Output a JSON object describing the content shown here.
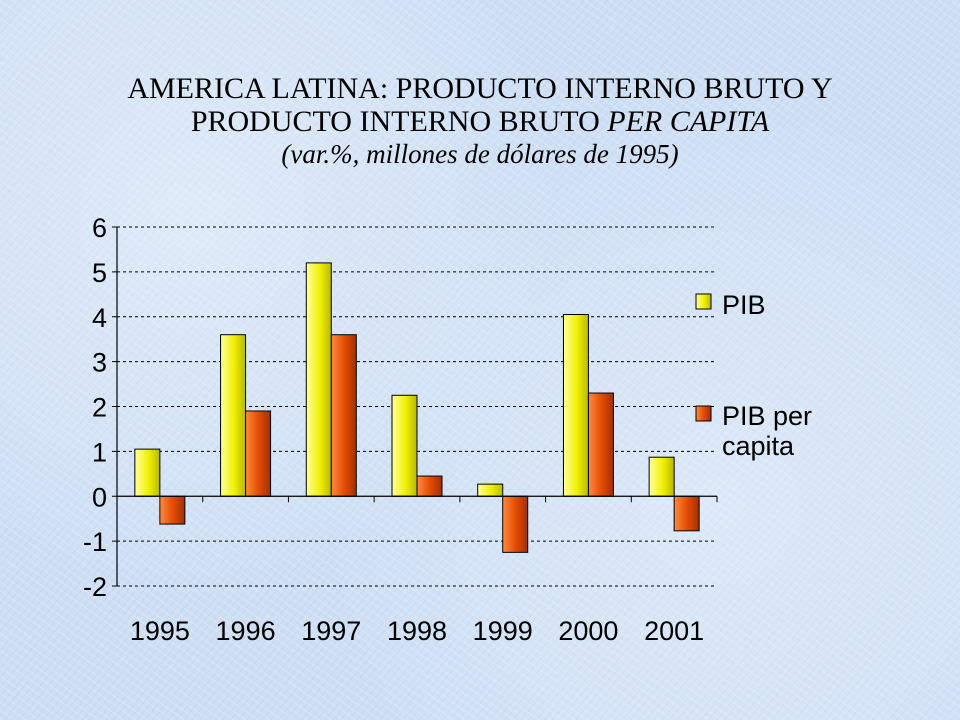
{
  "title": {
    "line1": "AMERICA LATINA: PRODUCTO INTERNO BRUTO Y",
    "line2_prefix": "PRODUCTO INTERNO BRUTO ",
    "line2_italic": "PER CAPITA",
    "line3": "(var.%, millones de dólares de 1995)"
  },
  "chart_data": {
    "type": "bar",
    "title": "AMERICA LATINA: PRODUCTO INTERNO BRUTO Y PRODUCTO INTERNO BRUTO PER CAPITA",
    "subtitle": "(var.%, millones de dólares de 1995)",
    "categories": [
      "1995",
      "1996",
      "1997",
      "1998",
      "1999",
      "2000",
      "2001"
    ],
    "series": [
      {
        "name": "PIB",
        "values": [
          1.05,
          3.6,
          5.2,
          2.25,
          0.27,
          4.05,
          0.87
        ],
        "color": "#f0f000"
      },
      {
        "name": "PIB per capita",
        "values": [
          -0.62,
          1.9,
          3.6,
          0.45,
          -1.25,
          2.3,
          -0.77
        ],
        "color": "#e04a00"
      }
    ],
    "ylim": [
      -2,
      6
    ],
    "yticks": [
      6,
      5,
      4,
      3,
      2,
      1,
      0,
      -1,
      -2
    ],
    "grid": true,
    "legend": {
      "position": "right",
      "labels": [
        "PIB",
        "PIB per",
        "capita"
      ]
    },
    "xlabel": "",
    "ylabel": ""
  }
}
